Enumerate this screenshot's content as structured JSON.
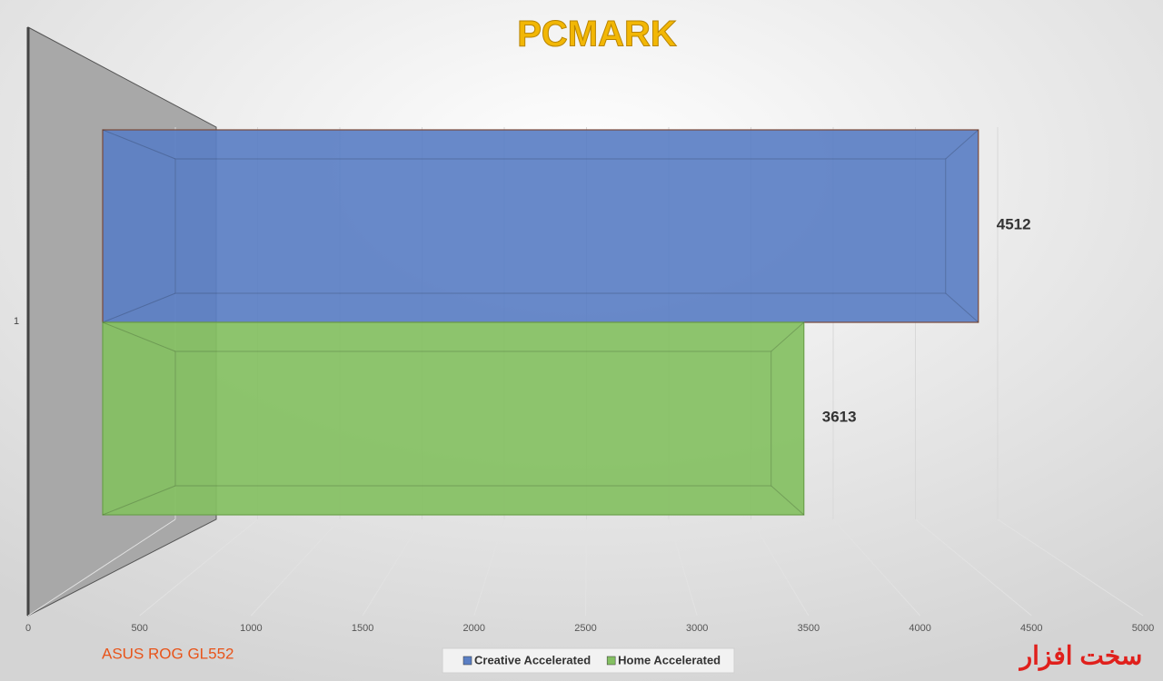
{
  "chart_data": {
    "type": "bar3d",
    "orientation": "horizontal",
    "title": "PCMARK",
    "annotation": "ASUS ROG GL552",
    "brand": "سخت افزار",
    "categories": [
      "1"
    ],
    "series": [
      {
        "name": "Creative Accelerated",
        "color": "#5b7fc4",
        "values": [
          4512
        ]
      },
      {
        "name": "Home Accelerated",
        "color": "#84c062",
        "values": [
          3613
        ]
      }
    ],
    "xlim": [
      0,
      5000
    ],
    "xticks": [
      0,
      500,
      1000,
      1500,
      2000,
      2500,
      3000,
      3500,
      4000,
      4500,
      5000
    ],
    "grid": true,
    "legend": "bottom"
  }
}
